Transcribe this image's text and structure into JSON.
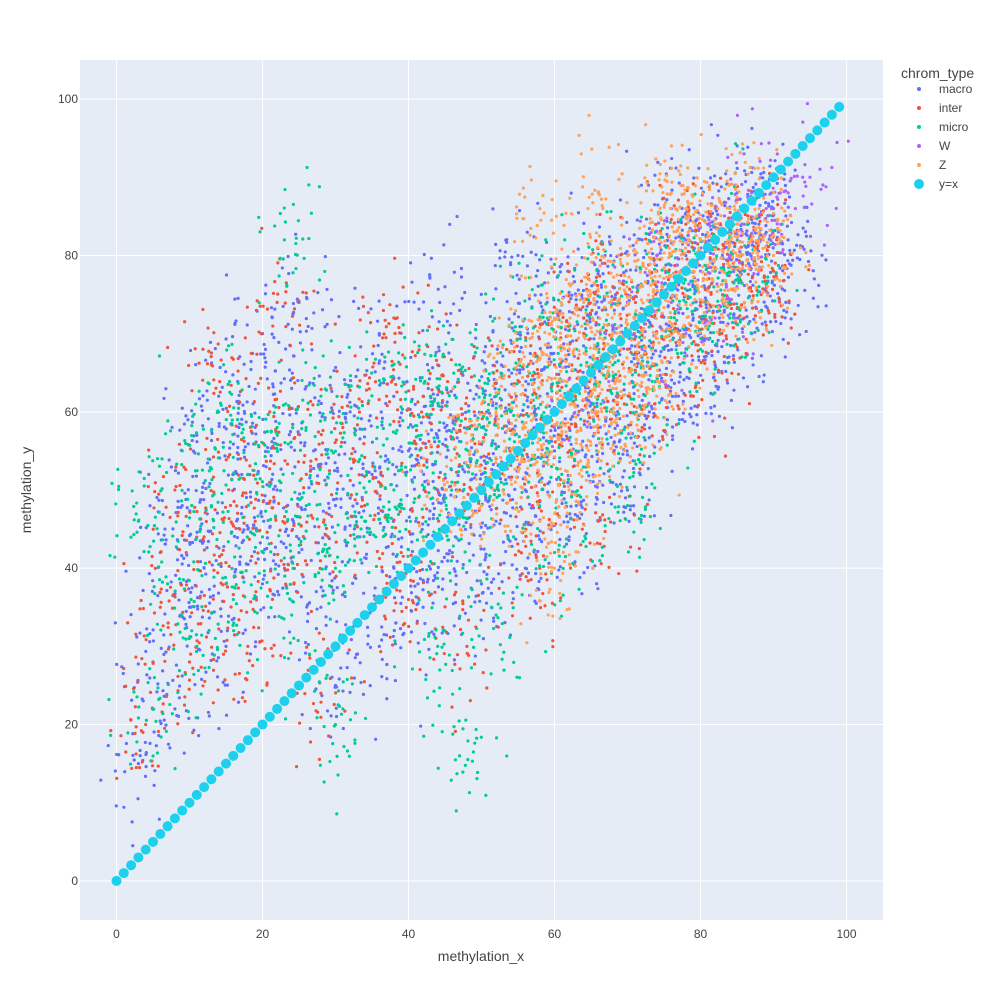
{
  "chart_data": {
    "type": "scatter",
    "title": "",
    "xlabel": "methylation_x",
    "ylabel": "methylation_y",
    "xlim": [
      -5,
      105
    ],
    "ylim": [
      -5,
      105
    ],
    "x_ticks": [
      0,
      20,
      40,
      60,
      80,
      100
    ],
    "y_ticks": [
      0,
      20,
      40,
      60,
      80,
      100
    ],
    "grid": true,
    "background_color": "#E5ECF6",
    "legend": {
      "title": "chrom_type",
      "placement": "right"
    },
    "series": [
      {
        "name": "macro",
        "color": "#636EFA",
        "marker": "small-dot",
        "points": [
          [
            3,
            15
          ],
          [
            5,
            28
          ],
          [
            6,
            42
          ],
          [
            8,
            22
          ],
          [
            9,
            48
          ],
          [
            10,
            35
          ],
          [
            11,
            57
          ],
          [
            12,
            40
          ],
          [
            14,
            62
          ],
          [
            15,
            30
          ],
          [
            16,
            52
          ],
          [
            18,
            45
          ],
          [
            19,
            58
          ],
          [
            20,
            38
          ],
          [
            22,
            50
          ],
          [
            24,
            63
          ],
          [
            25,
            42
          ],
          [
            27,
            55
          ],
          [
            28,
            35
          ],
          [
            30,
            48
          ],
          [
            32,
            60
          ],
          [
            33,
            44
          ],
          [
            35,
            52
          ],
          [
            36,
            70
          ],
          [
            38,
            40
          ],
          [
            40,
            55
          ],
          [
            41,
            46
          ],
          [
            42,
            62
          ],
          [
            44,
            50
          ],
          [
            45,
            58
          ],
          [
            46,
            42
          ],
          [
            48,
            56
          ],
          [
            50,
            52
          ],
          [
            51,
            64
          ],
          [
            52,
            46
          ],
          [
            54,
            60
          ],
          [
            55,
            70
          ],
          [
            56,
            50
          ],
          [
            58,
            62
          ],
          [
            59,
            74
          ],
          [
            60,
            55
          ],
          [
            62,
            68
          ],
          [
            63,
            48
          ],
          [
            64,
            72
          ],
          [
            65,
            58
          ],
          [
            66,
            78
          ],
          [
            68,
            64
          ],
          [
            69,
            54
          ],
          [
            70,
            74
          ],
          [
            71,
            66
          ],
          [
            72,
            82
          ],
          [
            73,
            60
          ],
          [
            74,
            76
          ],
          [
            75,
            68
          ],
          [
            76,
            86
          ],
          [
            77,
            62
          ],
          [
            78,
            80
          ],
          [
            79,
            72
          ],
          [
            80,
            70
          ],
          [
            81,
            84
          ],
          [
            82,
            66
          ],
          [
            83,
            80
          ],
          [
            84,
            74
          ],
          [
            85,
            88
          ],
          [
            86,
            78
          ],
          [
            87,
            70
          ],
          [
            88,
            84
          ],
          [
            89,
            80
          ],
          [
            90,
            86
          ],
          [
            91,
            76
          ],
          [
            92,
            82
          ],
          [
            30,
            25
          ],
          [
            36,
            30
          ],
          [
            42,
            35
          ],
          [
            50,
            38
          ],
          [
            56,
            40
          ],
          [
            62,
            44
          ],
          [
            70,
            50
          ],
          [
            20,
            70
          ],
          [
            25,
            74
          ],
          [
            45,
            76
          ],
          [
            55,
            80
          ]
        ]
      },
      {
        "name": "inter",
        "color": "#EF553B",
        "marker": "small-dot",
        "points": [
          [
            4,
            20
          ],
          [
            6,
            35
          ],
          [
            8,
            50
          ],
          [
            10,
            28
          ],
          [
            12,
            44
          ],
          [
            13,
            66
          ],
          [
            15,
            38
          ],
          [
            17,
            54
          ],
          [
            19,
            46
          ],
          [
            21,
            60
          ],
          [
            23,
            40
          ],
          [
            26,
            52
          ],
          [
            29,
            44
          ],
          [
            31,
            58
          ],
          [
            34,
            48
          ],
          [
            37,
            62
          ],
          [
            39,
            42
          ],
          [
            42,
            56
          ],
          [
            44,
            66
          ],
          [
            47,
            50
          ],
          [
            49,
            60
          ],
          [
            52,
            54
          ],
          [
            55,
            64
          ],
          [
            57,
            48
          ],
          [
            60,
            66
          ],
          [
            62,
            58
          ],
          [
            64,
            72
          ],
          [
            66,
            62
          ],
          [
            68,
            76
          ],
          [
            70,
            68
          ],
          [
            72,
            58
          ],
          [
            74,
            78
          ],
          [
            76,
            70
          ],
          [
            78,
            84
          ],
          [
            80,
            74
          ],
          [
            82,
            64
          ],
          [
            84,
            80
          ],
          [
            86,
            72
          ],
          [
            88,
            82
          ],
          [
            90,
            78
          ],
          [
            18,
            30
          ],
          [
            28,
            24
          ],
          [
            40,
            36
          ],
          [
            48,
            30
          ],
          [
            58,
            40
          ],
          [
            66,
            46
          ],
          [
            22,
            74
          ],
          [
            38,
            72
          ]
        ]
      },
      {
        "name": "micro",
        "color": "#00CC96",
        "marker": "small-dot",
        "points": [
          [
            3,
            46
          ],
          [
            5,
            22
          ],
          [
            7,
            38
          ],
          [
            9,
            55
          ],
          [
            11,
            30
          ],
          [
            13,
            48
          ],
          [
            14,
            60
          ],
          [
            16,
            36
          ],
          [
            18,
            52
          ],
          [
            20,
            44
          ],
          [
            22,
            58
          ],
          [
            24,
            34
          ],
          [
            26,
            48
          ],
          [
            28,
            62
          ],
          [
            30,
            40
          ],
          [
            32,
            54
          ],
          [
            34,
            46
          ],
          [
            36,
            64
          ],
          [
            38,
            50
          ],
          [
            40,
            58
          ],
          [
            42,
            44
          ],
          [
            43,
            62
          ],
          [
            45,
            52
          ],
          [
            47,
            66
          ],
          [
            48,
            48
          ],
          [
            50,
            58
          ],
          [
            52,
            62
          ],
          [
            53,
            50
          ],
          [
            55,
            66
          ],
          [
            57,
            56
          ],
          [
            58,
            72
          ],
          [
            60,
            60
          ],
          [
            61,
            52
          ],
          [
            63,
            68
          ],
          [
            65,
            62
          ],
          [
            67,
            76
          ],
          [
            68,
            66
          ],
          [
            70,
            58
          ],
          [
            72,
            72
          ],
          [
            74,
            66
          ],
          [
            76,
            80
          ],
          [
            78,
            74
          ],
          [
            80,
            68
          ],
          [
            82,
            78
          ],
          [
            84,
            72
          ],
          [
            86,
            84
          ],
          [
            88,
            76
          ],
          [
            23,
            82
          ],
          [
            30,
            20
          ],
          [
            44,
            30
          ],
          [
            52,
            34
          ],
          [
            60,
            42
          ],
          [
            70,
            48
          ],
          [
            47,
            16
          ]
        ]
      },
      {
        "name": "W",
        "color": "#AB63FA",
        "marker": "small-dot",
        "points": [
          [
            60,
            58
          ],
          [
            64,
            64
          ],
          [
            67,
            70
          ],
          [
            70,
            74
          ],
          [
            72,
            68
          ],
          [
            74,
            80
          ],
          [
            76,
            74
          ],
          [
            78,
            82
          ],
          [
            80,
            78
          ],
          [
            82,
            86
          ],
          [
            84,
            80
          ],
          [
            86,
            84
          ],
          [
            87,
            88
          ],
          [
            88,
            82
          ],
          [
            89,
            86
          ],
          [
            90,
            90
          ],
          [
            91,
            84
          ],
          [
            92,
            88
          ],
          [
            93,
            86
          ],
          [
            94,
            90
          ],
          [
            95,
            90
          ],
          [
            78,
            70
          ],
          [
            82,
            72
          ],
          [
            85,
            76
          ],
          [
            88,
            78
          ]
        ]
      },
      {
        "name": "Z",
        "color": "#FFA15A",
        "marker": "small-dot",
        "points": [
          [
            45,
            50
          ],
          [
            48,
            56
          ],
          [
            50,
            48
          ],
          [
            52,
            60
          ],
          [
            54,
            54
          ],
          [
            55,
            66
          ],
          [
            56,
            58
          ],
          [
            57,
            70
          ],
          [
            58,
            52
          ],
          [
            59,
            64
          ],
          [
            60,
            72
          ],
          [
            61,
            60
          ],
          [
            62,
            68
          ],
          [
            63,
            56
          ],
          [
            64,
            74
          ],
          [
            65,
            66
          ],
          [
            66,
            60
          ],
          [
            67,
            76
          ],
          [
            68,
            70
          ],
          [
            69,
            64
          ],
          [
            70,
            80
          ],
          [
            71,
            72
          ],
          [
            72,
            66
          ],
          [
            73,
            78
          ],
          [
            74,
            70
          ],
          [
            75,
            84
          ],
          [
            76,
            76
          ],
          [
            77,
            70
          ],
          [
            78,
            86
          ],
          [
            79,
            78
          ],
          [
            80,
            82
          ],
          [
            81,
            74
          ],
          [
            82,
            84
          ],
          [
            83,
            78
          ],
          [
            84,
            86
          ],
          [
            85,
            80
          ],
          [
            86,
            74
          ],
          [
            87,
            82
          ],
          [
            88,
            86
          ],
          [
            90,
            80
          ],
          [
            58,
            46
          ],
          [
            62,
            50
          ],
          [
            66,
            54
          ],
          [
            70,
            58
          ],
          [
            74,
            62
          ],
          [
            58,
            86
          ],
          [
            66,
            88
          ],
          [
            76,
            88
          ],
          [
            60,
            40
          ]
        ]
      },
      {
        "name": "y=x",
        "color": "#1DD0EC",
        "marker": "large-dot",
        "points": "identity 0..99 step 1"
      }
    ]
  }
}
